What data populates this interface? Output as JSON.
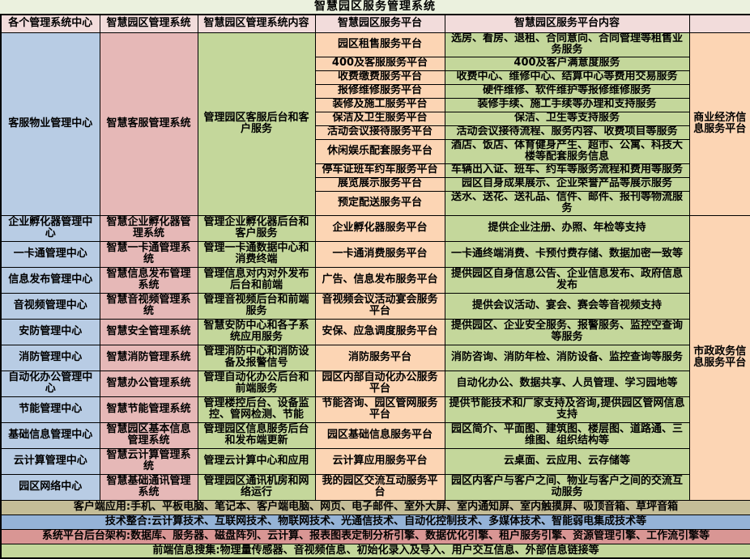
{
  "title": "智慧园区服务管理系统",
  "colors": {
    "page_bg": "#ebf1de",
    "header_bg": "#f2dcdb",
    "center_column": "#b8cce4",
    "system_column": "#e6b8b7",
    "green_cells": "#c4d79b",
    "orange_cells": "#fcd5b4",
    "border": "#000000"
  },
  "header": {
    "columns": [
      "各个管理系统中心",
      "智慧园区管理系统",
      "智慧园区管理系统内容",
      "智慧园区服务平台",
      "智慧园区服务平台内容",
      ""
    ]
  },
  "right_groups": [
    {
      "label": "商业经济信息服务平台"
    },
    {
      "label": "市政政务信息服务平台"
    }
  ],
  "sections": [
    {
      "center": "客服物业管理中心",
      "system": "智慧客服管理系统",
      "system_content": "管理园区客服后台和客户服务",
      "platforms": [
        {
          "platform": "园区租售服务平台",
          "content": "选房、看房、退租、合同意向、合同管理等租售业务服务"
        },
        {
          "platform": "400及客服服务平台",
          "content": "400及客户满意度服务"
        },
        {
          "platform": "收费缴费服务平台",
          "content": "收费中心、维修中心、结算中心等费用交易服务"
        },
        {
          "platform": "报修维修服务平台",
          "content": "硬件维修、软件维护等报修维修服务"
        },
        {
          "platform": "装修及施工服务平台",
          "content": "装修手续、施工手续等办理和支持服务"
        },
        {
          "platform": "保洁及卫生服务平台",
          "content": "保洁、卫生等支持服务"
        },
        {
          "platform": "活动会议接待服务平台",
          "content": "活动会议接待流程、服务内容、收费项目等服务"
        },
        {
          "platform": "休闲娱乐配套服务平台",
          "content": "酒店、饭店、体育健身产生、超市、公寓、科技大楼等配套服务信息"
        },
        {
          "platform": "停车证班车约车服务平台",
          "content": "车辆出入证、班车、约车等服务流程和费用等服务"
        },
        {
          "platform": "展览展示服务平台",
          "content": "园区自身成果展示、企业荣誉产品等展示服务"
        },
        {
          "platform": "预定配送服务平台",
          "content": "送水、送花、送礼品、信件、邮件、报刊等物流服务"
        }
      ]
    },
    {
      "center": "企业孵化器管理中心",
      "system": "智慧企业孵化器管理系统",
      "system_content": "管理企业孵化器后台和客户服务",
      "platforms": [
        {
          "platform": "企业孵化器服务平台",
          "content": "提供企业注册、办照、年检等支持"
        }
      ]
    },
    {
      "center": "一卡通管理中心",
      "system": "智慧一卡通管理系统",
      "system_content": "管理一卡通数据中心和消费终端",
      "platforms": [
        {
          "platform": "一卡通消费服务平台",
          "content": "一卡通终端消费、卡预付费存储、数据加密一致等"
        }
      ]
    },
    {
      "center": "信息发布管理中心",
      "system": "智慧信息发布管理系统",
      "system_content": "管理信息对内对外发布后台和前端",
      "platforms": [
        {
          "platform": "广告、信息发布服务平台",
          "content": "提供园区自身信息公告、企业信息发布、政府信息发布"
        }
      ]
    },
    {
      "center": "音视频管理中心",
      "system": "智慧音视频管理系统",
      "system_content": "管理音视频后台和前端服务",
      "platforms": [
        {
          "platform": "音视频会议活动宴会服务平台",
          "content": "提供会议活动、宴会、赛会等音视频支持"
        }
      ]
    },
    {
      "center": "安防管理中心",
      "system": "智慧安全管理系统",
      "system_content": "智慧安防中心和各子系统应用服务",
      "platforms": [
        {
          "platform": "安保、应急调度服务平台",
          "content": "提供园区、企业安全服务、报警服务、监控空查询等服务"
        }
      ]
    },
    {
      "center": "消防管理中心",
      "system": "智慧消防管理系统",
      "system_content": "管理消防中心和消防设备及报警信号",
      "platforms": [
        {
          "platform": "消防服务平台",
          "content": "消防咨询、消防年检、消防设备、监控查询等服务"
        }
      ]
    },
    {
      "center": "自动化办公管理中心",
      "system": "智慧办公管理系统",
      "system_content": "管理自动化办公后台和前端服务",
      "platforms": [
        {
          "platform": "园区内部自动化办公服务平台",
          "content": "自动化办公、数据共享、人员管理、学习园地等"
        }
      ]
    },
    {
      "center": "节能管理中心",
      "system": "智慧节能管理系统",
      "system_content": "管理楼控后台、设备监控、管网检测、节能",
      "platforms": [
        {
          "platform": "节能咨询、园区管网服务平台",
          "content": "提供节能技术和厂家支持及咨询,提供园区管网信息支持"
        }
      ]
    },
    {
      "center": "基础信息管理中心",
      "system": "智慧园区基本信息管理系统",
      "system_content": "管理园区信息服务后台和发布端更新",
      "platforms": [
        {
          "platform": "园区基础信息服务平台",
          "content": "园区简介、平面图、建筑图、楼层图、道路通、三维图、组织结构等"
        }
      ]
    },
    {
      "center": "云计算管理中心",
      "system": "智慧云计算管理系统",
      "system_content": "管理云计算中心和应用",
      "platforms": [
        {
          "platform": "云计算应用服务平台",
          "content": "云桌面、云应用、云存储等"
        }
      ]
    },
    {
      "center": "园区网络中心",
      "system": "智慧基础通讯管理系统",
      "system_content": "管理园区通讯机房和网络运行",
      "platforms": [
        {
          "platform": "我的园区交流互动服务平台",
          "content": "园区内客户与客户之间、物业与客户之间的交流互动服务"
        }
      ]
    }
  ],
  "footer_rows": [
    {
      "text": "客户端应用:手机、平板电脑、笔记本、客户端电脑、网页、电子邮件、室外大屏、室内通知屏、室内触摸屏、吸顶音箱、草坪音箱",
      "color": "#c4bd97"
    },
    {
      "text": "技术整合:云计算技术、互联网技术、物联网技术、光通信技术、自动化控制技术、多媒体技术、智能弱电集成技术等",
      "color": "#95b3d7"
    },
    {
      "text": "系统平台后台架构:数据库、服务器、磁盘阵列、云计算、报表图表定制分析引擎、数据优化引擎、租户服务引擎、资源管理引擎、工作流引擎等",
      "color": "#d99694"
    },
    {
      "text": "前端信息搜集:物理量传感器、音视频信息、初始化录入及导入、用户交互信息、外部信息链接等",
      "color": "#c4d79b"
    }
  ]
}
